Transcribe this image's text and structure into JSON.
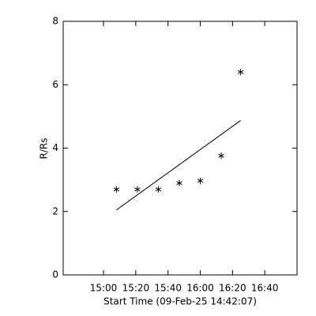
{
  "chart_data": {
    "type": "scatter",
    "x_label": "Start Time (09-Feb-25 14:42:07)",
    "y_label": "R/Rs",
    "xlim": [
      875,
      1020
    ],
    "ylim": [
      0,
      8
    ],
    "xticks": [
      {
        "value": 900,
        "label": "15:00"
      },
      {
        "value": 920,
        "label": "15:20"
      },
      {
        "value": 940,
        "label": "15:40"
      },
      {
        "value": 960,
        "label": "16:00"
      },
      {
        "value": 980,
        "label": "16:20"
      },
      {
        "value": 1000,
        "label": "16:40"
      }
    ],
    "yticks": [
      0,
      2,
      4,
      6,
      8
    ],
    "color": "#000000",
    "series": [
      {
        "x": [
          908,
          921,
          934,
          947,
          960,
          973,
          985
        ],
        "values": [
          2.7,
          2.7,
          2.7,
          2.9,
          2.97,
          3.76,
          6.4
        ],
        "marker": "asterisk"
      }
    ],
    "fit": {
      "x": [
        908,
        985
      ],
      "values": [
        2.05,
        4.87
      ]
    }
  }
}
